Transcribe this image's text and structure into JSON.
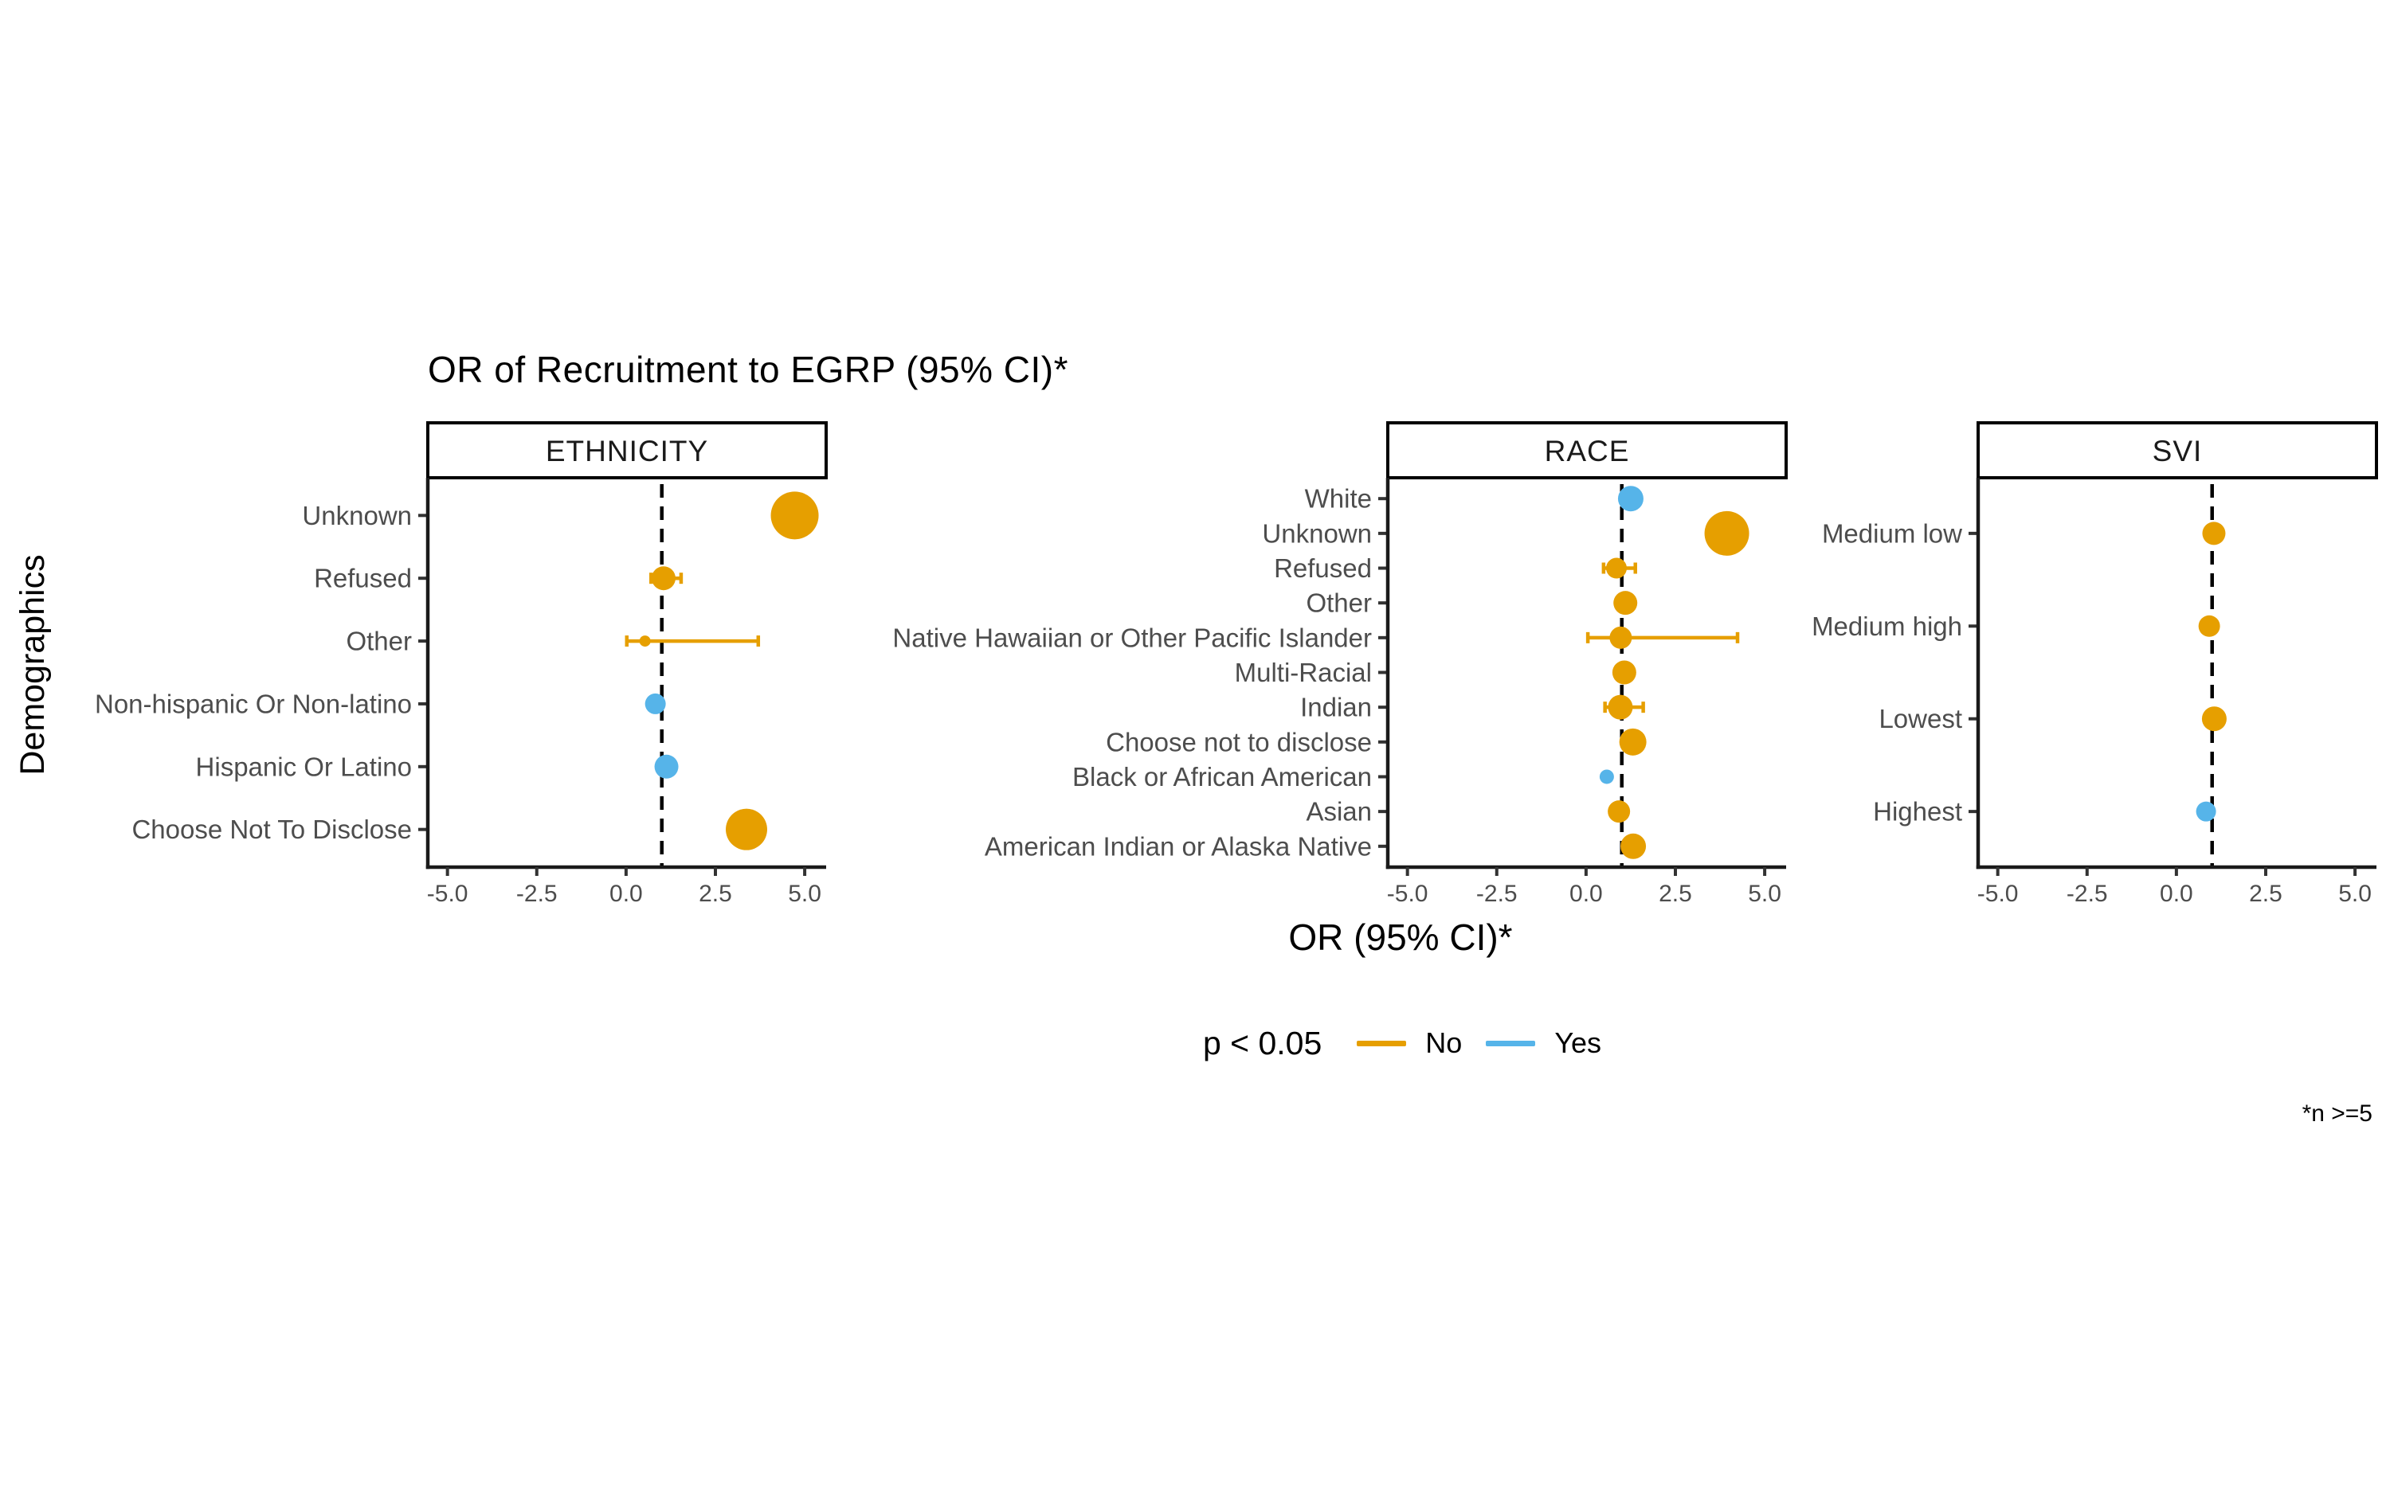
{
  "title": "OR of Recruitment to EGRP (95% CI)*",
  "y_axis_label": "Demographics",
  "x_axis_label": "OR (95% CI)*",
  "footnote": "*n >=5",
  "legend": {
    "title": "p < 0.05",
    "items": [
      {
        "label": "No",
        "color": "#E69F00"
      },
      {
        "label": "Yes",
        "color": "#56B4E9"
      }
    ]
  },
  "colors": {
    "no": "#E69F00",
    "yes": "#56B4E9",
    "axis_line": "#1a1a1a",
    "tick_mark": "#333333",
    "axis_text": "#4d4d4d",
    "strip_border": "#000000",
    "strip_fill": "#ffffff",
    "reference_line": "#000000"
  },
  "chart_data": {
    "type": "scatter",
    "subtype": "forest-bubble-plot",
    "title": "OR of Recruitment to EGRP (95% CI)*",
    "xlabel": "OR (95% CI)*",
    "ylabel": "Demographics",
    "x_domain": [
      -5.55,
      5.6
    ],
    "x_ticks": [
      "-5.0",
      "-2.5",
      "0.0",
      "2.5",
      "5.0"
    ],
    "x_tick_values": [
      -5.0,
      -2.5,
      0.0,
      2.5,
      5.0
    ],
    "reference_line_x": 1.0,
    "legend_position": "bottom",
    "grid": false,
    "panels": [
      {
        "facet": "ETHNICITY",
        "rows": [
          {
            "label": "Unknown",
            "or": 4.72,
            "ci": null,
            "p_lt_05": "No",
            "size": 30
          },
          {
            "label": "Refused",
            "or": 1.05,
            "ci": [
              0.7,
              1.54
            ],
            "p_lt_05": "No",
            "size": 15
          },
          {
            "label": "Other",
            "or": 0.53,
            "ci": [
              0.02,
              3.7
            ],
            "p_lt_05": "No",
            "size": 7
          },
          {
            "label": "Non-hispanic Or Non-latino",
            "or": 0.82,
            "ci": null,
            "p_lt_05": "Yes",
            "size": 13
          },
          {
            "label": "Hispanic Or Latino",
            "or": 1.13,
            "ci": null,
            "p_lt_05": "Yes",
            "size": 15
          },
          {
            "label": "Choose Not To Disclose",
            "or": 3.37,
            "ci": null,
            "p_lt_05": "No",
            "size": 26
          }
        ]
      },
      {
        "facet": "RACE",
        "rows": [
          {
            "label": "White",
            "or": 1.25,
            "ci": null,
            "p_lt_05": "Yes",
            "size": 16
          },
          {
            "label": "Unknown",
            "or": 3.94,
            "ci": null,
            "p_lt_05": "No",
            "size": 28
          },
          {
            "label": "Refused",
            "or": 0.85,
            "ci": [
              0.49,
              1.38
            ],
            "p_lt_05": "No",
            "size": 13
          },
          {
            "label": "Other",
            "or": 1.1,
            "ci": null,
            "p_lt_05": "No",
            "size": 15
          },
          {
            "label": "Native Hawaiian or Other Pacific Islander",
            "or": 0.97,
            "ci": [
              0.05,
              4.24
            ],
            "p_lt_05": "No",
            "size": 14
          },
          {
            "label": "Multi-Racial",
            "or": 1.07,
            "ci": null,
            "p_lt_05": "No",
            "size": 15
          },
          {
            "label": "Indian",
            "or": 0.96,
            "ci": [
              0.53,
              1.6
            ],
            "p_lt_05": "No",
            "size": 15.5
          },
          {
            "label": "Choose not to disclose",
            "or": 1.31,
            "ci": null,
            "p_lt_05": "No",
            "size": 17
          },
          {
            "label": "Black or African American",
            "or": 0.58,
            "ci": null,
            "p_lt_05": "Yes",
            "size": 9
          },
          {
            "label": "Asian",
            "or": 0.92,
            "ci": null,
            "p_lt_05": "No",
            "size": 14
          },
          {
            "label": "American Indian or Alaska Native",
            "or": 1.32,
            "ci": null,
            "p_lt_05": "No",
            "size": 16
          }
        ]
      },
      {
        "facet": "SVI",
        "rows": [
          {
            "label": "Medium low",
            "or": 1.05,
            "ci": null,
            "p_lt_05": "No",
            "size": 14.5
          },
          {
            "label": "Medium high",
            "or": 0.92,
            "ci": null,
            "p_lt_05": "No",
            "size": 13.5
          },
          {
            "label": "Lowest",
            "or": 1.06,
            "ci": null,
            "p_lt_05": "No",
            "size": 15.5
          },
          {
            "label": "Highest",
            "or": 0.83,
            "ci": null,
            "p_lt_05": "Yes",
            "size": 12.5
          }
        ]
      }
    ]
  }
}
